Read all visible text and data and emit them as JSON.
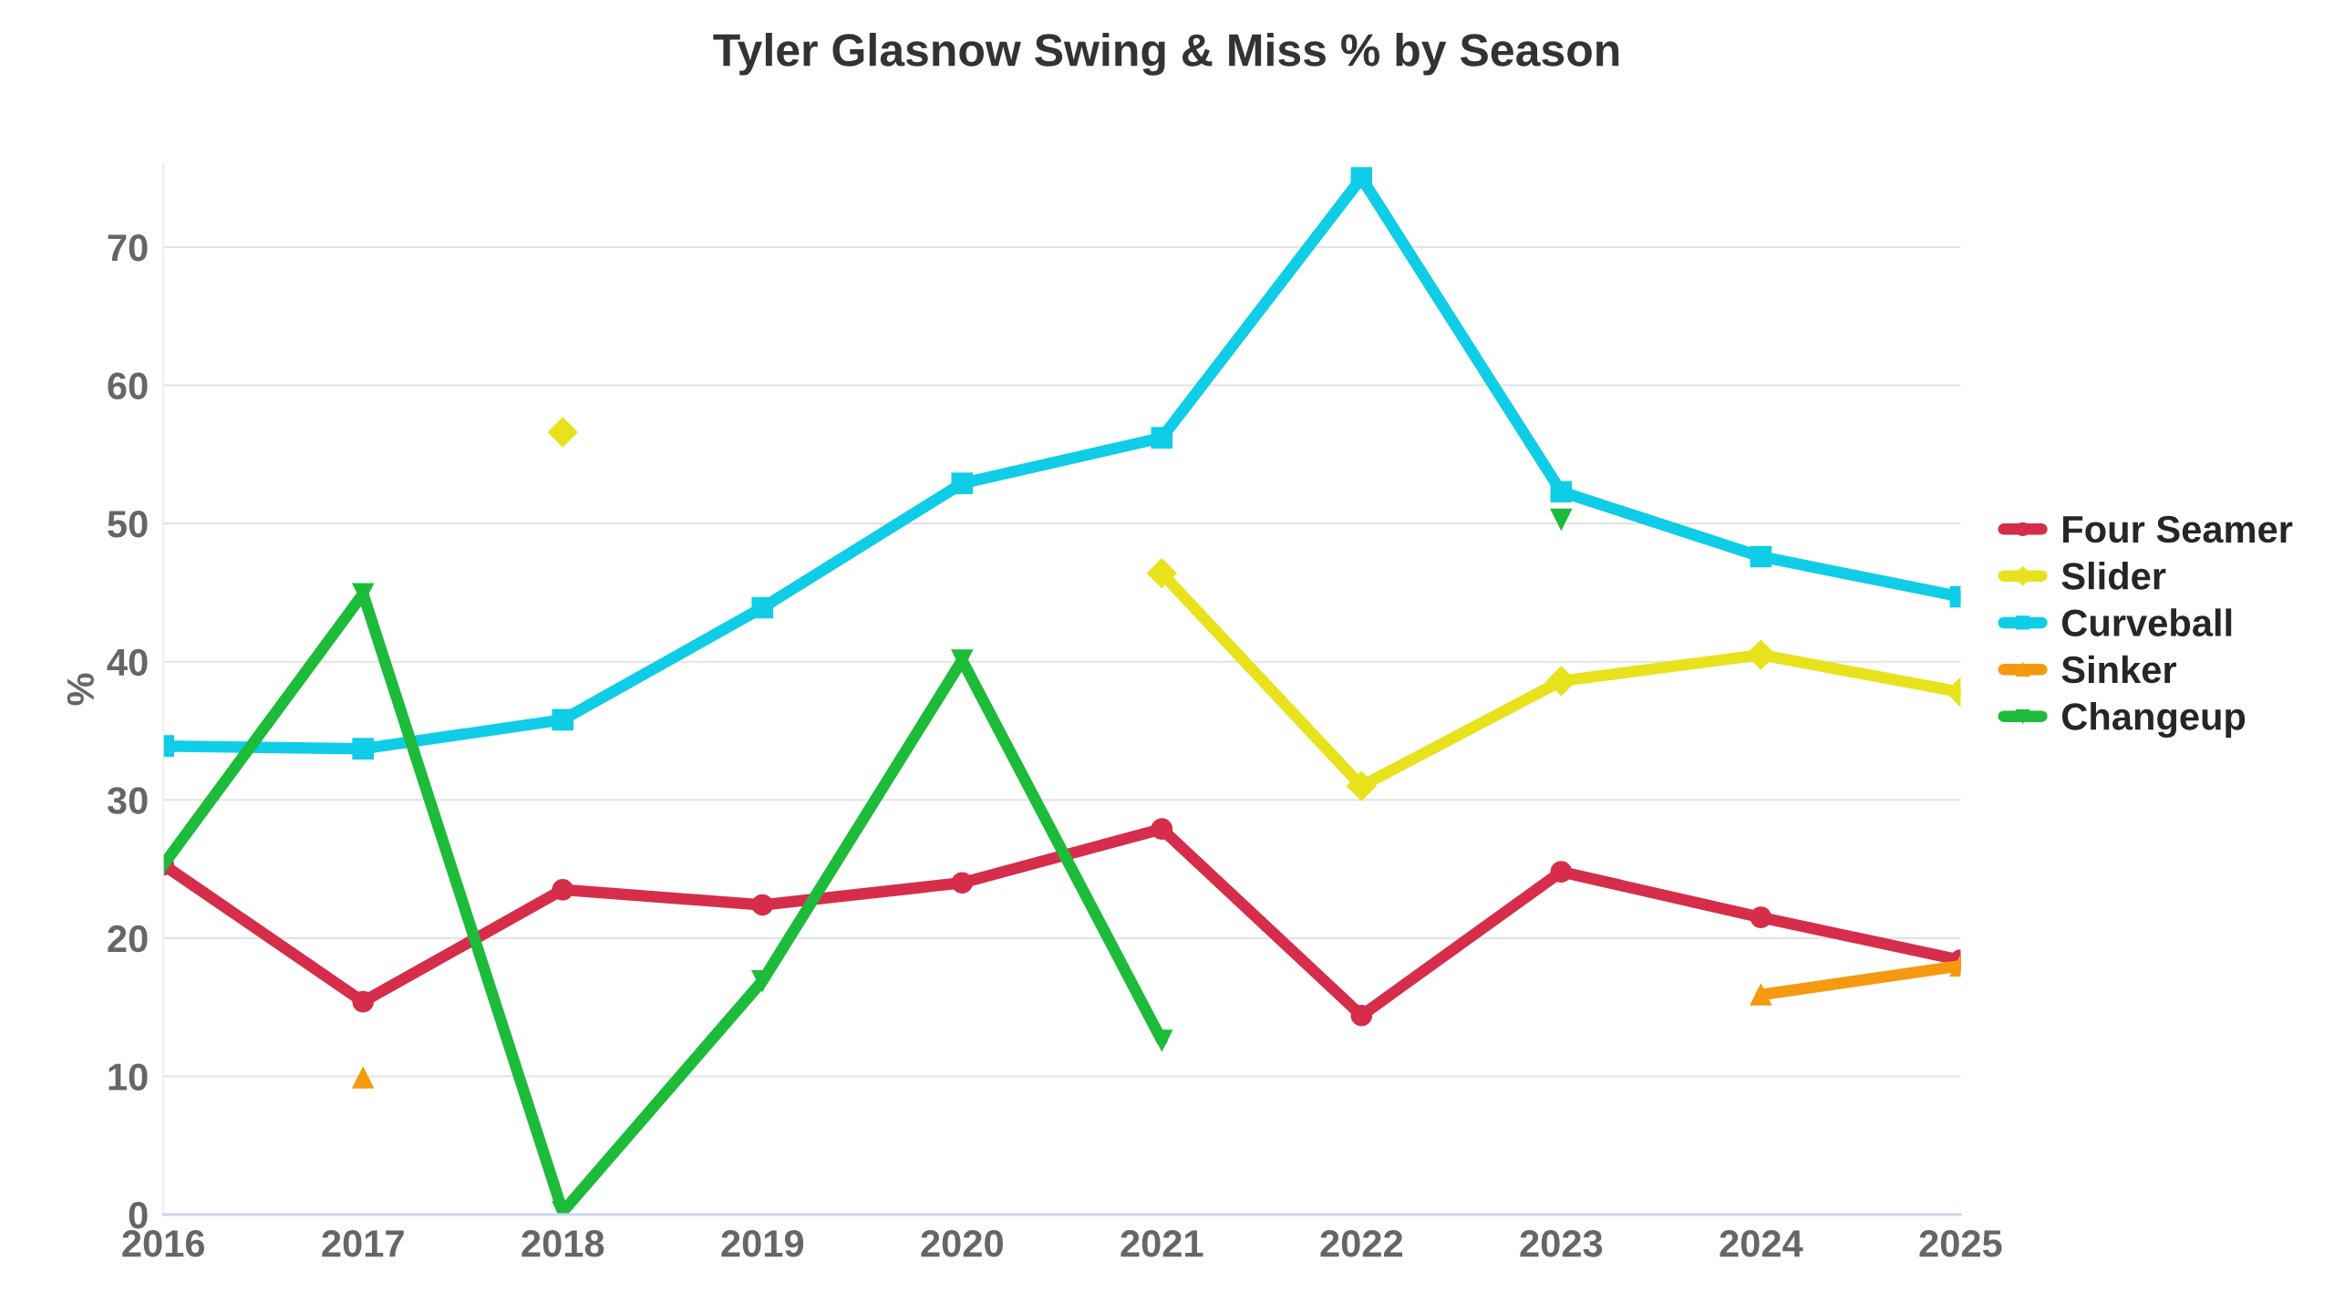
{
  "chart_data": {
    "type": "line",
    "title": "Tyler Glasnow Swing & Miss % by Season",
    "ylabel": "%",
    "x": [
      2016,
      2017,
      2018,
      2019,
      2020,
      2021,
      2022,
      2023,
      2024,
      2025
    ],
    "xlim": [
      2016,
      2025
    ],
    "xticks": [
      2016,
      2017,
      2018,
      2019,
      2020,
      2021,
      2022,
      2023,
      2024,
      2025
    ],
    "ylim": [
      0,
      76
    ],
    "yticks": [
      0,
      10,
      20,
      30,
      40,
      50,
      60,
      70
    ],
    "grid": "y",
    "legend": "right",
    "line_style": "solid",
    "series": [
      {
        "name": "Four Seamer",
        "color": "#d62d4b",
        "marker": "circle",
        "values": [
          25.3,
          15.4,
          23.5,
          22.4,
          24.0,
          27.9,
          14.4,
          24.8,
          21.5,
          18.4
        ]
      },
      {
        "name": "Slider",
        "color": "#e8e21c",
        "marker": "diamond",
        "values": [
          null,
          null,
          56.6,
          null,
          null,
          46.4,
          31.0,
          38.6,
          40.5,
          37.8
        ]
      },
      {
        "name": "Curveball",
        "color": "#0fcde6",
        "marker": "square",
        "values": [
          33.9,
          33.7,
          35.8,
          43.9,
          52.9,
          56.2,
          75.0,
          52.3,
          47.6,
          44.7
        ]
      },
      {
        "name": "Sinker",
        "color": "#f59a10",
        "marker": "triangle",
        "values": [
          null,
          9.9,
          null,
          null,
          null,
          null,
          null,
          null,
          15.9,
          18.0
        ]
      },
      {
        "name": "Changeup",
        "color": "#1dbb3a",
        "marker": "triangle_down",
        "values": [
          25.3,
          44.9,
          0.2,
          16.9,
          40.1,
          12.6,
          null,
          50.3,
          null,
          null
        ]
      }
    ]
  }
}
